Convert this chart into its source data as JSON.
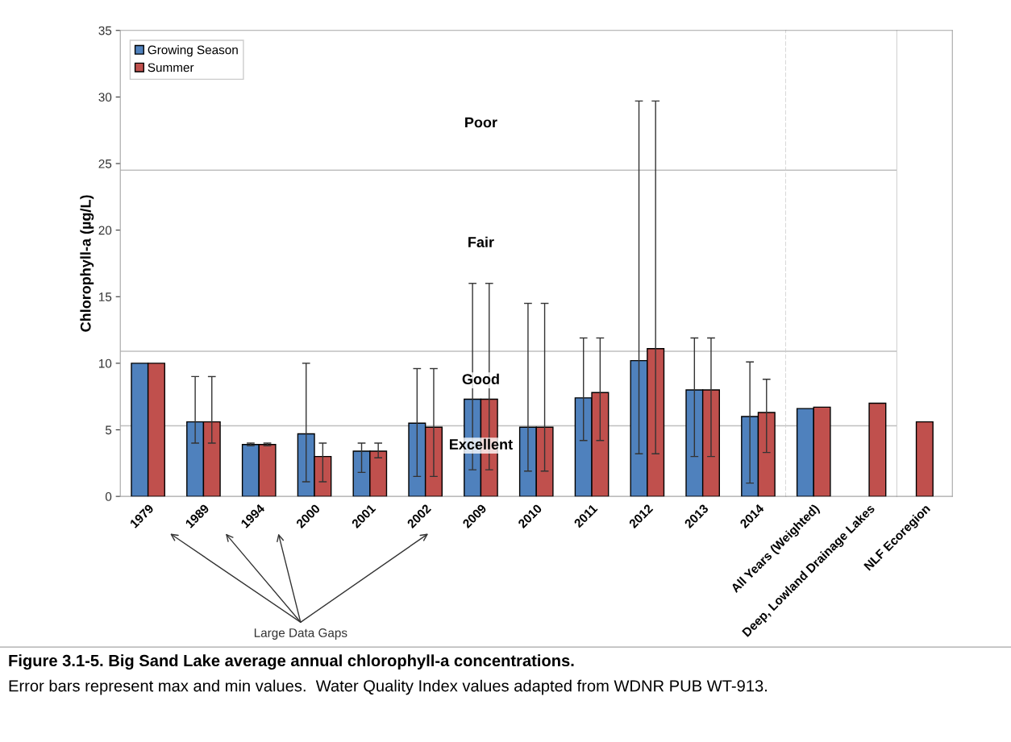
{
  "chart_data": [
    {
      "type": "bar",
      "ylabel": "Chlorophyll-a (µg/L)",
      "categories": [
        "1979",
        "1989",
        "1994",
        "2000",
        "2001",
        "2002",
        "2009",
        "2010",
        "2011",
        "2012",
        "2013",
        "2014"
      ],
      "series": [
        {
          "name": "Growing Season",
          "color": "#4f81bd",
          "values": [
            10.0,
            5.6,
            3.9,
            4.7,
            3.4,
            5.5,
            7.3,
            5.2,
            7.4,
            10.2,
            8.0,
            6.0
          ],
          "errors": [
            null,
            [
              4.0,
              9.0
            ],
            [
              3.8,
              4.0
            ],
            [
              1.1,
              10.0
            ],
            [
              1.8,
              4.0
            ],
            [
              1.5,
              9.6
            ],
            [
              2.0,
              16.0
            ],
            [
              1.9,
              14.5
            ],
            [
              4.2,
              11.9
            ],
            [
              3.2,
              29.7
            ],
            [
              3.0,
              11.9
            ],
            [
              1.0,
              10.1
            ]
          ]
        },
        {
          "name": "Summer",
          "color": "#c0504d",
          "values": [
            10.0,
            5.6,
            3.9,
            3.0,
            3.4,
            5.2,
            7.3,
            5.2,
            7.8,
            11.1,
            8.0,
            6.3
          ],
          "errors": [
            null,
            [
              4.0,
              9.0
            ],
            [
              3.8,
              4.0
            ],
            [
              1.1,
              4.0
            ],
            [
              2.9,
              4.0
            ],
            [
              1.5,
              9.6
            ],
            [
              2.0,
              16.0
            ],
            [
              1.9,
              14.5
            ],
            [
              4.2,
              11.9
            ],
            [
              3.2,
              29.7
            ],
            [
              3.0,
              11.9
            ],
            [
              3.3,
              8.8
            ]
          ]
        }
      ],
      "ylim": [
        0,
        35
      ],
      "yticks": [
        0,
        5,
        10,
        15,
        20,
        25,
        30,
        35
      ],
      "ref_lines": [
        {
          "axis": "y",
          "value": 5.3,
          "color": "#bfbfbf"
        },
        {
          "axis": "y",
          "value": 10.9,
          "color": "#bfbfbf"
        },
        {
          "axis": "y",
          "value": 24.5,
          "color": "#bfbfbf"
        }
      ],
      "annotations": [
        "Poor",
        "Fair",
        "Good",
        "Excellent",
        "Large Data Gaps",
        "Figure 3.1-5. Big Sand Lake average annual chlorophyll-a concentrations.",
        "Error bars represent max and min values.  Water Quality Index values adapted from WDNR PUB WT-913."
      ],
      "legend": "top left"
    },
    {
      "type": "bar",
      "categories": [
        "All Years (Weighted)",
        "Deep, Lowland Drainage Lakes"
      ],
      "series": [
        {
          "color": "#4f81bd",
          "values": [
            6.6,
            null
          ]
        },
        {
          "color": "#c0504d",
          "values": [
            6.7,
            7.0
          ]
        }
      ],
      "ylim": [
        0,
        35
      ],
      "yticks": [
        0,
        5,
        10,
        15,
        20,
        25,
        30,
        35
      ],
      "tick_labels": "x",
      "ref_lines": [
        {
          "axis": "y",
          "value": 5.3,
          "color": "#bfbfbf"
        },
        {
          "axis": "y",
          "value": 10.9,
          "color": "#bfbfbf"
        },
        {
          "axis": "y",
          "value": 24.5,
          "color": "#bfbfbf"
        }
      ]
    },
    {
      "type": "bar",
      "categories": [
        "NLF Ecoregion"
      ],
      "series": [
        {
          "color": "#c0504d",
          "values": [
            5.6
          ]
        }
      ],
      "ylim": [
        0,
        35
      ],
      "yticks": [
        0,
        5,
        10,
        15,
        20,
        25,
        30,
        35
      ],
      "tick_labels": "x"
    }
  ]
}
